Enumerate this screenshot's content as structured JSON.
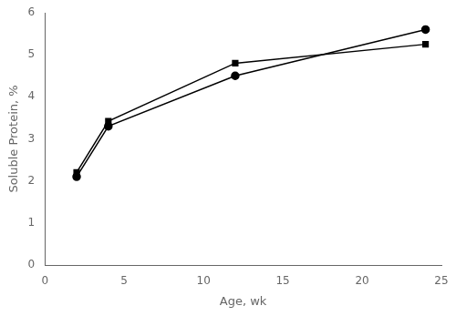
{
  "chart_data": {
    "type": "line",
    "xlabel": "Age, wk",
    "ylabel": "Soluble Protein, %",
    "series": [
      {
        "x": [
          2,
          4,
          12,
          24
        ],
        "values": [
          2.1,
          3.3,
          4.5,
          5.6
        ],
        "color": "#000000",
        "marker": "circle",
        "line_style": "solid"
      },
      {
        "x": [
          2,
          4,
          12,
          24
        ],
        "values": [
          2.2,
          3.42,
          4.8,
          5.25
        ],
        "color": "#000000",
        "marker": "square",
        "line_style": "solid"
      }
    ],
    "xlim": [
      0,
      25
    ],
    "xticks": [
      0,
      5,
      10,
      15,
      20,
      25
    ],
    "ylim": [
      0,
      6
    ],
    "yticks": [
      0,
      1,
      2,
      3,
      4,
      5,
      6
    ],
    "grid": false
  }
}
